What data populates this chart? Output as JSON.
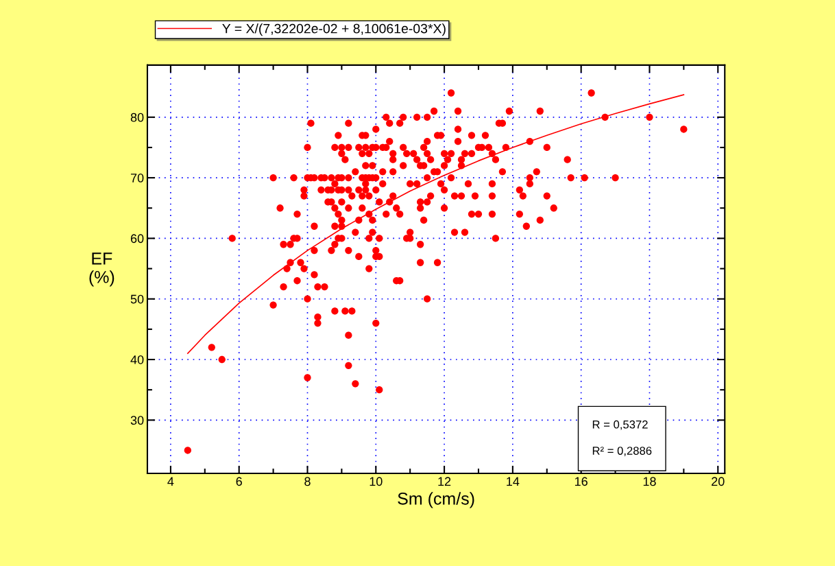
{
  "chart_data": {
    "type": "scatter",
    "xlabel": "Sm (cm/s)",
    "ylabel": "EF\n(%)",
    "xlim": [
      3.32,
      20.2
    ],
    "xticks": [
      4,
      6,
      8,
      10,
      12,
      14,
      16,
      18,
      20
    ],
    "ylim": [
      21.2,
      88.6
    ],
    "yticks": [
      30,
      40,
      50,
      60,
      70,
      80
    ],
    "grid": true,
    "legend": "top left",
    "marker": "circle",
    "annotations": [
      "R = 0,5372",
      "R² = 0,2886"
    ],
    "series": [
      {
        "color": "#ff0000",
        "x": [
          4.5,
          5.2,
          5.5,
          5.8,
          7.0,
          7.0,
          7.2,
          7.3,
          7.3,
          7.4,
          7.5,
          7.5,
          7.6,
          7.6,
          7.7,
          7.7,
          7.7,
          7.8,
          7.9,
          7.9,
          7.9,
          8.0,
          8.0,
          8.0,
          8.1,
          8.0,
          8.1,
          8.2,
          8.2,
          8.2,
          8.2,
          8.3,
          8.3,
          8.3,
          8.4,
          8.4,
          8.5,
          8.5,
          8.6,
          8.6,
          8.7,
          8.7,
          8.7,
          8.7,
          8.8,
          8.8,
          8.8,
          8.8,
          8.8,
          8.8,
          8.9,
          8.9,
          8.9,
          8.9,
          8.9,
          9.0,
          9.0,
          9.0,
          9.0,
          9.0,
          9.0,
          9.0,
          9.0,
          9.1,
          9.1,
          9.2,
          9.2,
          9.2,
          9.2,
          9.2,
          9.2,
          9.2,
          9.2,
          9.3,
          9.3,
          9.4,
          9.4,
          9.4,
          9.5,
          9.5,
          9.5,
          9.5,
          9.6,
          9.6,
          9.6,
          9.6,
          9.6,
          9.7,
          9.7,
          9.7,
          9.7,
          9.7,
          9.7,
          9.8,
          9.8,
          9.8,
          9.8,
          9.8,
          9.8,
          9.9,
          9.9,
          9.9,
          9.9,
          9.9,
          10.0,
          10.0,
          10.0,
          10.0,
          10.0,
          10.0,
          10.0,
          10.1,
          10.1,
          10.1,
          10.1,
          10.2,
          10.2,
          10.2,
          10.3,
          10.3,
          10.3,
          10.4,
          10.4,
          10.4,
          10.5,
          10.5,
          10.5,
          10.5,
          10.6,
          10.6,
          10.7,
          10.7,
          10.7,
          10.8,
          10.8,
          10.8,
          10.9,
          10.9,
          11.0,
          11.0,
          11.0,
          11.1,
          11.2,
          11.2,
          11.2,
          11.3,
          11.3,
          11.3,
          11.3,
          11.3,
          11.4,
          11.4,
          11.4,
          11.5,
          11.5,
          11.5,
          11.5,
          11.5,
          11.5,
          11.6,
          11.6,
          11.7,
          11.7,
          11.8,
          11.8,
          11.8,
          11.9,
          11.9,
          12.0,
          12.0,
          12.0,
          12.0,
          12.1,
          12.2,
          12.2,
          12.2,
          12.3,
          12.3,
          12.4,
          12.4,
          12.4,
          12.5,
          12.5,
          12.5,
          12.6,
          12.6,
          12.7,
          12.8,
          12.8,
          12.8,
          12.9,
          13.0,
          13.0,
          13.1,
          13.2,
          13.3,
          13.4,
          13.4,
          13.4,
          13.4,
          13.5,
          13.5,
          13.6,
          13.7,
          13.7,
          13.8,
          13.9,
          14.2,
          14.2,
          14.3,
          14.4,
          14.5,
          14.5,
          14.5,
          14.7,
          14.8,
          14.8,
          15.0,
          15.0,
          15.2,
          15.6,
          15.7,
          16.1,
          16.3,
          16.7,
          17.0,
          18.0,
          19.0
        ],
        "values": [
          25,
          42,
          40,
          60,
          70,
          49,
          65,
          59,
          52,
          55,
          56,
          59,
          60,
          70,
          64,
          60,
          53,
          56,
          55,
          67,
          68,
          50,
          37,
          75,
          79,
          70,
          70,
          70,
          62,
          58,
          54,
          52,
          47,
          46,
          70,
          68,
          70,
          52,
          66,
          68,
          70,
          68,
          66,
          58,
          59,
          75,
          69,
          65,
          62,
          48,
          77,
          70,
          68,
          64,
          60,
          75,
          74,
          70,
          68,
          66,
          63,
          62,
          60,
          48,
          73,
          79,
          75,
          70,
          68,
          65,
          58,
          44,
          39,
          48,
          67,
          71,
          36,
          61,
          75,
          68,
          63,
          57,
          77,
          74,
          70,
          67,
          65,
          77,
          75,
          72,
          70,
          69,
          68,
          74,
          70,
          67,
          64,
          60,
          55,
          75,
          72,
          70,
          63,
          61,
          78,
          75,
          70,
          68,
          58,
          57,
          46,
          66,
          60,
          57,
          35,
          75,
          69,
          71,
          75,
          80,
          64,
          79,
          76,
          66,
          74,
          73,
          71,
          67,
          65,
          53,
          79,
          64,
          53,
          80,
          75,
          72,
          74,
          60,
          69,
          61,
          60,
          74,
          80,
          73,
          69,
          72,
          66,
          65,
          59,
          56,
          75,
          72,
          63,
          80,
          76,
          74,
          70,
          66,
          50,
          73,
          67,
          81,
          71,
          77,
          71,
          56,
          77,
          69,
          74,
          72,
          68,
          65,
          73,
          70,
          84,
          74,
          67,
          61,
          81,
          78,
          76,
          73,
          72,
          67,
          61,
          74,
          69,
          77,
          74,
          64,
          67,
          75,
          64,
          75,
          77,
          75,
          74,
          69,
          67,
          64,
          73,
          60,
          79,
          79,
          71,
          75,
          81,
          68,
          64,
          67,
          62,
          76,
          70,
          69,
          71,
          81,
          63,
          75,
          67,
          65,
          73,
          70,
          70,
          84,
          80,
          70,
          80,
          78
        ]
      },
      {
        "type": "line",
        "name": "Y = X/(7,32202e-02 + 8,10061e-03*X)",
        "color": "#ff0000",
        "marker": "none",
        "line_style": "solid",
        "x": [
          4.5,
          5,
          6,
          7,
          8,
          9,
          10,
          11,
          12,
          13,
          14,
          15,
          16,
          17,
          18,
          19
        ],
        "values": [
          41.0,
          44.0,
          49.3,
          53.9,
          58.0,
          61.6,
          64.8,
          67.8,
          70.4,
          72.8,
          75.0,
          77.0,
          78.9,
          80.6,
          82.2,
          83.7
        ]
      }
    ]
  }
}
